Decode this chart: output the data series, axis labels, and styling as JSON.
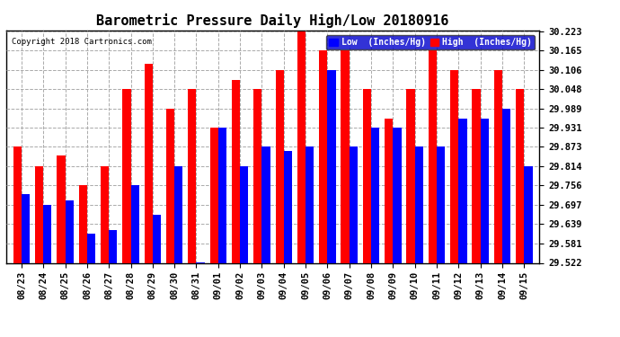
{
  "title": "Barometric Pressure Daily High/Low 20180916",
  "copyright": "Copyright 2018 Cartronics.com",
  "legend_low": "Low  (Inches/Hg)",
  "legend_high": "High  (Inches/Hg)",
  "dates": [
    "08/23",
    "08/24",
    "08/25",
    "08/26",
    "08/27",
    "08/28",
    "08/29",
    "08/30",
    "08/31",
    "09/01",
    "09/02",
    "09/03",
    "09/04",
    "09/05",
    "09/06",
    "09/07",
    "09/08",
    "09/09",
    "09/10",
    "09/11",
    "09/12",
    "09/13",
    "09/14",
    "09/15"
  ],
  "low": [
    29.731,
    29.697,
    29.71,
    29.61,
    29.622,
    29.756,
    29.668,
    29.814,
    29.524,
    29.931,
    29.814,
    29.873,
    29.862,
    29.873,
    30.106,
    29.873,
    29.931,
    29.931,
    29.873,
    29.873,
    29.96,
    29.96,
    29.989,
    29.814
  ],
  "high": [
    29.873,
    29.814,
    29.848,
    29.756,
    29.814,
    30.048,
    30.126,
    29.989,
    30.048,
    29.931,
    30.077,
    30.048,
    30.106,
    30.223,
    30.165,
    30.165,
    30.048,
    29.96,
    30.048,
    30.165,
    30.106,
    30.048,
    30.106,
    30.048
  ],
  "low_color": "#0000ff",
  "high_color": "#ff0000",
  "bg_color": "#ffffff",
  "ylim_min": 29.522,
  "ylim_max": 30.223,
  "yticks": [
    29.522,
    29.581,
    29.639,
    29.697,
    29.756,
    29.814,
    29.873,
    29.931,
    29.989,
    30.048,
    30.106,
    30.165,
    30.223
  ],
  "title_fontsize": 11,
  "copyright_fontsize": 6.5,
  "tick_fontsize": 7.5,
  "legend_fontsize": 7,
  "bar_width": 0.38
}
